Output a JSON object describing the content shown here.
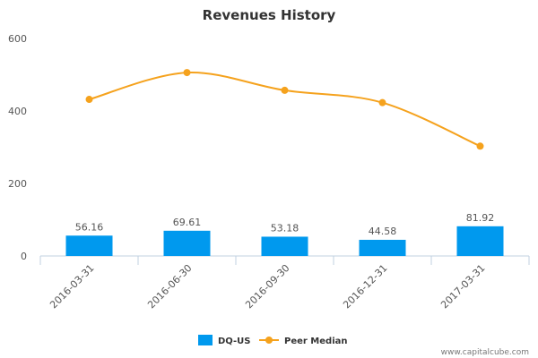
{
  "chart_data": {
    "type": "bar",
    "title": "Revenues History",
    "categories": [
      "2016-03-31",
      "2016-06-30",
      "2016-09-30",
      "2016-12-31",
      "2017-03-31"
    ],
    "ylim": [
      0,
      600
    ],
    "yticks": [
      0,
      200,
      400,
      600
    ],
    "grid": false,
    "legend_placement": "bottom-center",
    "series": [
      {
        "name": "DQ-US",
        "type": "bar",
        "color": "#0099ee",
        "values": [
          56.16,
          69.61,
          53.18,
          44.58,
          81.92
        ],
        "labels": [
          "56.16",
          "69.61",
          "53.18",
          "44.58",
          "81.92"
        ]
      },
      {
        "name": "Peer Median",
        "type": "line",
        "color": "#f5a21d",
        "values": [
          432,
          506,
          457,
          423,
          303
        ]
      }
    ]
  },
  "credit": "www.capitalcube.com"
}
